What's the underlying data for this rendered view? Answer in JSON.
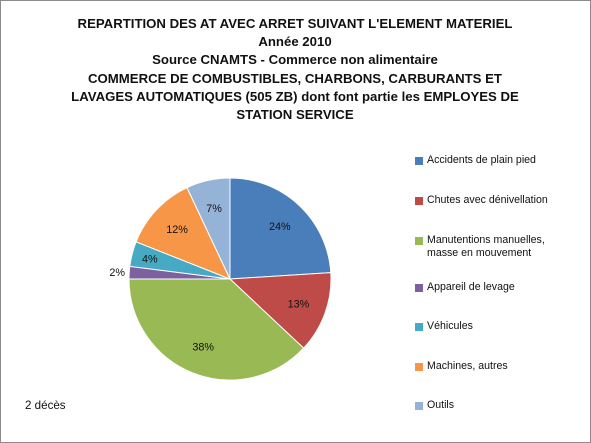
{
  "chart_data": {
    "type": "pie",
    "title_lines": [
      "REPARTITION DES AT AVEC ARRET SUIVANT L'ELEMENT MATERIEL",
      "Année 2010",
      "Source CNAMTS - Commerce non alimentaire",
      "COMMERCE DE COMBUSTIBLES, CHARBONS, CARBURANTS ET",
      "LAVAGES AUTOMATIQUES (505 ZB) dont font partie les EMPLOYES DE",
      "STATION SERVICE"
    ],
    "categories": [
      "Accidents de plain pied",
      "Chutes avec dénivellation",
      "Manutentions manuelles, masse en mouvement",
      "Appareil de levage",
      "Véhicules",
      "Machines, autres",
      "Outils"
    ],
    "values": [
      24,
      13,
      38,
      2,
      4,
      12,
      7
    ],
    "data_labels": [
      "24%",
      "13%",
      "38%",
      "2%",
      "4%",
      "12%",
      "7%"
    ],
    "colors": [
      "#4a7ebb",
      "#be4b48",
      "#98b954",
      "#7d60a0",
      "#46aac5",
      "#f79646",
      "#95b3d7"
    ],
    "legend_position": "right",
    "start_angle_deg": 0,
    "direction": "clockwise"
  },
  "note": "2 décès"
}
